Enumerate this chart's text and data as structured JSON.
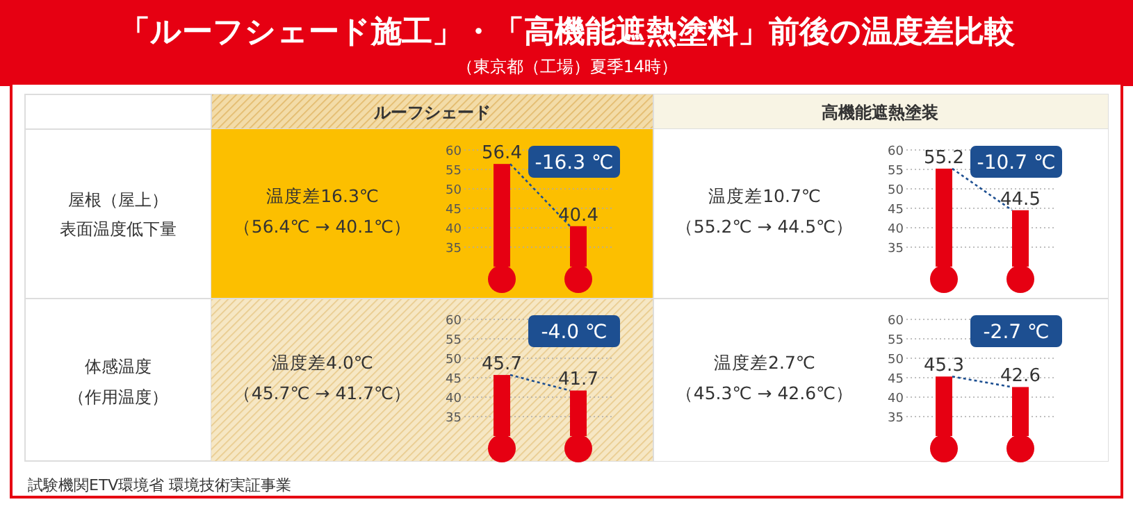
{
  "chart_data": [
    {
      "type": "other",
      "title": "「ルーフシェード施工」・「高機能遮熱塗料」前後の温度差比較",
      "subtitle": "（東京都（工場）夏季14時）",
      "annotations": [
        "ルーフシェード",
        "高機能遮熱塗装",
        "屋根（屋上）",
        "表面温度低下量",
        "体感温度",
        "（作用温度）",
        "試験機関ETV環境省 環境技術実証事業"
      ]
    },
    {
      "type": "bar",
      "categories": [
        null,
        null
      ],
      "values": [
        56.4,
        40.4
      ],
      "color": "#e60012",
      "data_labels": true,
      "ylim": [
        30,
        60
      ],
      "yticks": [
        35,
        40,
        45,
        50,
        55,
        60
      ],
      "grid": "y",
      "annotations": [
        "温度差16.3℃",
        "（56.4℃ → 40.1℃）",
        "-16.3 ℃"
      ]
    },
    {
      "type": "bar",
      "categories": [
        null,
        null
      ],
      "values": [
        55.2,
        44.5
      ],
      "color": "#e60012",
      "data_labels": true,
      "ylim": [
        30,
        60
      ],
      "yticks": [
        35,
        40,
        45,
        50,
        55,
        60
      ],
      "grid": "y",
      "annotations": [
        "温度差10.7℃",
        "（55.2℃ → 44.5℃）",
        "-10.7 ℃"
      ]
    },
    {
      "type": "bar",
      "categories": [
        null,
        null
      ],
      "values": [
        45.7,
        41.7
      ],
      "color": "#e60012",
      "data_labels": true,
      "ylim": [
        30,
        60
      ],
      "yticks": [
        35,
        40,
        45,
        50,
        55,
        60
      ],
      "grid": "y",
      "annotations": [
        "温度差4.0℃",
        "（45.7℃ → 41.7℃）",
        "-4.0 ℃"
      ]
    },
    {
      "type": "bar",
      "categories": [
        null,
        null
      ],
      "values": [
        45.3,
        42.6
      ],
      "color": "#e60012",
      "data_labels": true,
      "ylim": [
        30,
        60
      ],
      "yticks": [
        35,
        40,
        45,
        50,
        55,
        60
      ],
      "grid": "y",
      "annotations": [
        "温度差2.7℃",
        "（45.3℃ → 42.6℃）",
        "-2.7 ℃"
      ]
    }
  ]
}
